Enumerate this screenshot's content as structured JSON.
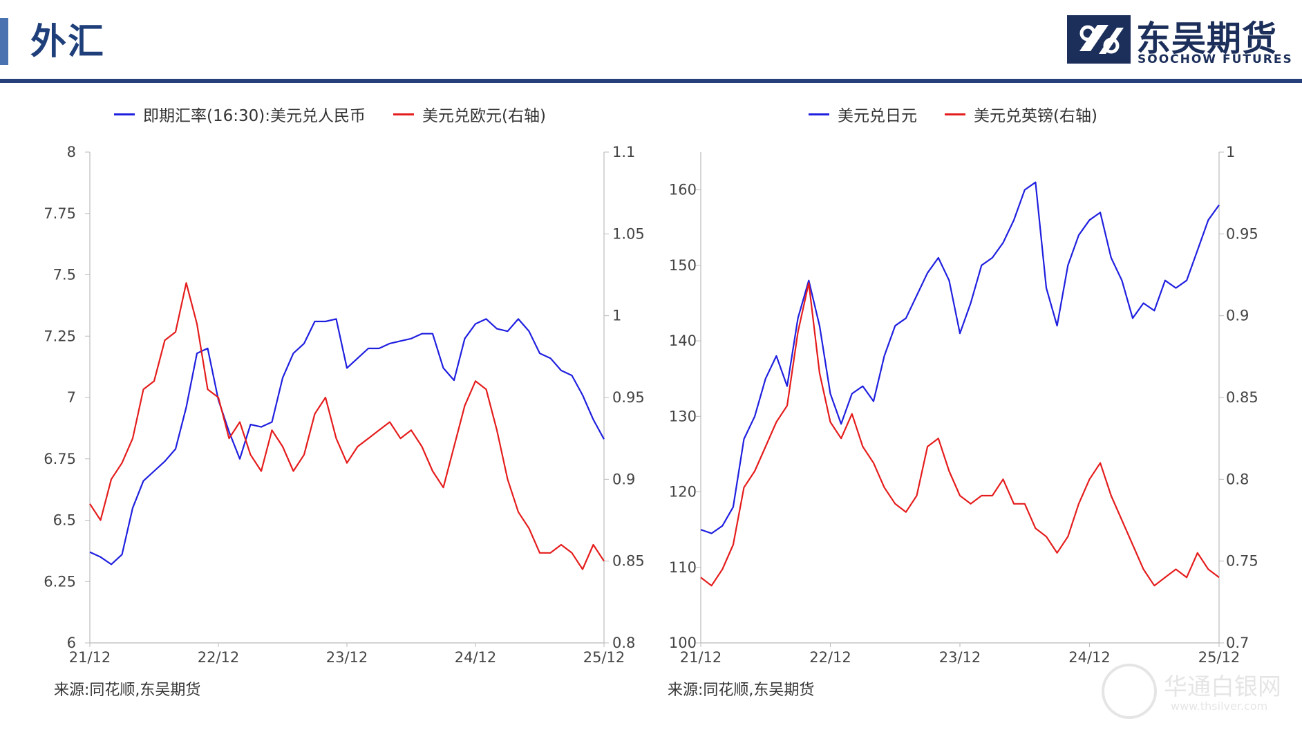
{
  "header": {
    "title": "外汇",
    "logo_name": "东吴期货",
    "logo_sub": "SOOCHOW FUTURES"
  },
  "colors": {
    "accent": "#25407a",
    "series_blue": "#1f1fe0",
    "series_red": "#e51c1c"
  },
  "watermark": {
    "text": "华通白银网",
    "sub": "www.thsilver.com"
  },
  "chart_data": [
    {
      "type": "line",
      "x_tick_labels": [
        "21/12",
        "22/12",
        "23/12",
        "24/12",
        "25/12"
      ],
      "y_left": {
        "ylim": [
          6,
          8
        ],
        "ticks": [
          6,
          6.25,
          6.5,
          6.75,
          7,
          7.25,
          7.5,
          7.75,
          8
        ],
        "tick_labels": [
          "6",
          "6.25",
          "6.5",
          "6.75",
          "7",
          "7.25",
          "7.5",
          "7.75",
          "8"
        ]
      },
      "y_right": {
        "ylim": [
          0.8,
          1.1
        ],
        "ticks": [
          0.8,
          0.85,
          0.9,
          0.95,
          1,
          1.05,
          1.1
        ],
        "tick_labels": [
          "0.8",
          "0.85",
          "0.9",
          "0.95",
          "1",
          "1.05",
          "1.1"
        ]
      },
      "series": [
        {
          "name": "即期汇率(16:30):美元兑人民币",
          "axis": "left",
          "color": "#1f1fe0",
          "x": [
            "2021-12",
            "2022-01",
            "2022-02",
            "2022-03",
            "2022-04",
            "2022-05",
            "2022-06",
            "2022-07",
            "2022-08",
            "2022-09",
            "2022-10",
            "2022-11",
            "2022-12",
            "2023-01",
            "2023-02",
            "2023-03",
            "2023-04",
            "2023-05",
            "2023-06",
            "2023-07",
            "2023-08",
            "2023-09",
            "2023-10",
            "2023-11",
            "2023-12",
            "2024-01",
            "2024-02",
            "2024-03",
            "2024-04",
            "2024-05",
            "2024-06",
            "2024-07",
            "2024-08",
            "2024-09",
            "2024-10",
            "2024-11",
            "2024-12",
            "2025-01",
            "2025-02",
            "2025-03",
            "2025-04",
            "2025-05",
            "2025-06",
            "2025-07",
            "2025-08",
            "2025-09",
            "2025-10",
            "2025-11",
            "2025-12"
          ],
          "values": [
            6.37,
            6.35,
            6.32,
            6.36,
            6.55,
            6.66,
            6.7,
            6.74,
            6.79,
            6.96,
            7.18,
            7.2,
            6.99,
            6.86,
            6.75,
            6.89,
            6.88,
            6.9,
            7.08,
            7.18,
            7.22,
            7.31,
            7.31,
            7.32,
            7.12,
            7.16,
            7.2,
            7.2,
            7.22,
            7.23,
            7.24,
            7.26,
            7.26,
            7.12,
            7.07,
            7.24,
            7.3,
            7.32,
            7.28,
            7.27,
            7.32,
            7.27,
            7.18,
            7.16,
            7.11,
            7.09,
            7.01,
            6.91,
            6.83
          ]
        },
        {
          "name": "美元兑欧元(右轴)",
          "axis": "right",
          "color": "#e51c1c",
          "x": [
            "2021-12",
            "2022-01",
            "2022-02",
            "2022-03",
            "2022-04",
            "2022-05",
            "2022-06",
            "2022-07",
            "2022-08",
            "2022-09",
            "2022-10",
            "2022-11",
            "2022-12",
            "2023-01",
            "2023-02",
            "2023-03",
            "2023-04",
            "2023-05",
            "2023-06",
            "2023-07",
            "2023-08",
            "2023-09",
            "2023-10",
            "2023-11",
            "2023-12",
            "2024-01",
            "2024-02",
            "2024-03",
            "2024-04",
            "2024-05",
            "2024-06",
            "2024-07",
            "2024-08",
            "2024-09",
            "2024-10",
            "2024-11",
            "2024-12",
            "2025-01",
            "2025-02",
            "2025-03",
            "2025-04",
            "2025-05",
            "2025-06",
            "2025-07",
            "2025-08",
            "2025-09",
            "2025-10",
            "2025-11",
            "2025-12"
          ],
          "values": [
            0.885,
            0.875,
            0.9,
            0.91,
            0.925,
            0.955,
            0.96,
            0.985,
            0.99,
            1.02,
            0.995,
            0.955,
            0.95,
            0.925,
            0.935,
            0.915,
            0.905,
            0.93,
            0.92,
            0.905,
            0.915,
            0.94,
            0.95,
            0.925,
            0.91,
            0.92,
            0.925,
            0.93,
            0.935,
            0.925,
            0.93,
            0.92,
            0.905,
            0.895,
            0.92,
            0.945,
            0.96,
            0.955,
            0.93,
            0.9,
            0.88,
            0.87,
            0.855,
            0.855,
            0.86,
            0.855,
            0.845,
            0.86,
            0.85
          ]
        }
      ]
    },
    {
      "type": "line",
      "x_tick_labels": [
        "21/12",
        "22/12",
        "23/12",
        "24/12",
        "25/12"
      ],
      "y_left": {
        "ylim": [
          100,
          165
        ],
        "ticks": [
          100,
          110,
          120,
          130,
          140,
          150,
          160
        ],
        "tick_labels": [
          "100",
          "110",
          "120",
          "130",
          "140",
          "150",
          "160"
        ]
      },
      "y_right": {
        "ylim": [
          0.7,
          1.0
        ],
        "ticks": [
          0.7,
          0.75,
          0.8,
          0.85,
          0.9,
          0.95,
          1.0
        ],
        "tick_labels": [
          "0.7",
          "0.75",
          "0.8",
          "0.85",
          "0.9",
          "0.95",
          "1"
        ]
      },
      "series": [
        {
          "name": "美元兑日元",
          "axis": "left",
          "color": "#1f1fe0",
          "x": [
            "2021-12",
            "2022-01",
            "2022-02",
            "2022-03",
            "2022-04",
            "2022-05",
            "2022-06",
            "2022-07",
            "2022-08",
            "2022-09",
            "2022-10",
            "2022-11",
            "2022-12",
            "2023-01",
            "2023-02",
            "2023-03",
            "2023-04",
            "2023-05",
            "2023-06",
            "2023-07",
            "2023-08",
            "2023-09",
            "2023-10",
            "2023-11",
            "2023-12",
            "2024-01",
            "2024-02",
            "2024-03",
            "2024-04",
            "2024-05",
            "2024-06",
            "2024-07",
            "2024-08",
            "2024-09",
            "2024-10",
            "2024-11",
            "2024-12",
            "2025-01",
            "2025-02",
            "2025-03",
            "2025-04",
            "2025-05",
            "2025-06",
            "2025-07",
            "2025-08",
            "2025-09",
            "2025-10",
            "2025-11",
            "2025-12"
          ],
          "values": [
            115,
            114.5,
            115.5,
            118,
            127,
            130,
            135,
            138,
            134,
            143,
            148,
            142,
            133,
            129,
            133,
            134,
            132,
            138,
            142,
            143,
            146,
            149,
            151,
            148,
            141,
            145,
            150,
            151,
            153,
            156,
            160,
            161,
            147,
            142,
            150,
            154,
            156,
            157,
            151,
            148,
            143,
            145,
            144,
            148,
            147,
            148,
            152,
            156,
            158
          ]
        },
        {
          "name": "美元兑英镑(右轴)",
          "axis": "right",
          "color": "#e51c1c",
          "x": [
            "2021-12",
            "2022-01",
            "2022-02",
            "2022-03",
            "2022-04",
            "2022-05",
            "2022-06",
            "2022-07",
            "2022-08",
            "2022-09",
            "2022-10",
            "2022-11",
            "2022-12",
            "2023-01",
            "2023-02",
            "2023-03",
            "2023-04",
            "2023-05",
            "2023-06",
            "2023-07",
            "2023-08",
            "2023-09",
            "2023-10",
            "2023-11",
            "2023-12",
            "2024-01",
            "2024-02",
            "2024-03",
            "2024-04",
            "2024-05",
            "2024-06",
            "2024-07",
            "2024-08",
            "2024-09",
            "2024-10",
            "2024-11",
            "2024-12",
            "2025-01",
            "2025-02",
            "2025-03",
            "2025-04",
            "2025-05",
            "2025-06",
            "2025-07",
            "2025-08",
            "2025-09",
            "2025-10",
            "2025-11",
            "2025-12"
          ],
          "values": [
            0.74,
            0.735,
            0.745,
            0.76,
            0.795,
            0.805,
            0.82,
            0.835,
            0.845,
            0.89,
            0.92,
            0.865,
            0.835,
            0.825,
            0.84,
            0.82,
            0.81,
            0.795,
            0.785,
            0.78,
            0.79,
            0.82,
            0.825,
            0.805,
            0.79,
            0.785,
            0.79,
            0.79,
            0.8,
            0.785,
            0.785,
            0.77,
            0.765,
            0.755,
            0.765,
            0.785,
            0.8,
            0.81,
            0.79,
            0.775,
            0.76,
            0.745,
            0.735,
            0.74,
            0.745,
            0.74,
            0.755,
            0.745,
            0.74
          ]
        }
      ]
    }
  ],
  "charts": [
    {
      "legend": [
        "即期汇率(16:30):美元兑人民币",
        "美元兑欧元(右轴)"
      ],
      "source": "来源:同花顺,东吴期货"
    },
    {
      "legend": [
        "美元兑日元",
        "美元兑英镑(右轴)"
      ],
      "source": "来源:同花顺,东吴期货"
    }
  ]
}
